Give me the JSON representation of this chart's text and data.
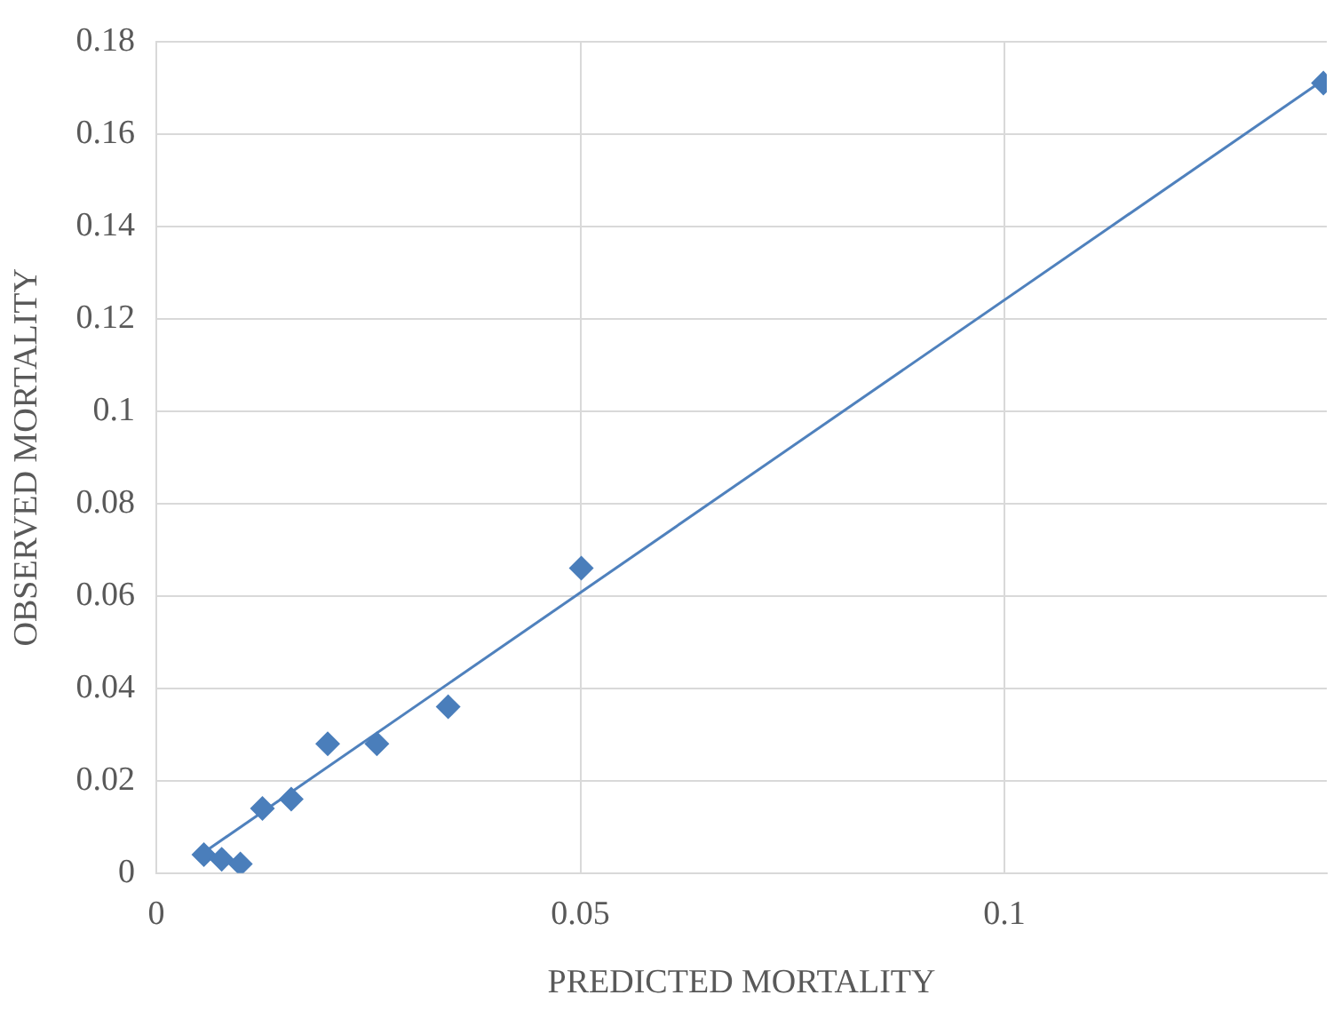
{
  "chart_data": {
    "type": "scatter",
    "xlabel": "PREDICTED MORTALITY",
    "ylabel": "OBSERVED MORTALITY",
    "xlim": [
      0,
      0.138
    ],
    "xticks": [
      0,
      0.05,
      0.1
    ],
    "ylim": [
      0,
      0.18
    ],
    "yticks": [
      0,
      0.02,
      0.04,
      0.06,
      0.08,
      0.1,
      0.12,
      0.14,
      0.16,
      0.18
    ],
    "grid": true,
    "legend": false,
    "marker": "diamond",
    "series": [
      {
        "type": "scatter",
        "color": "#4a7ebb",
        "x": [
          0.0056,
          0.0077,
          0.0099,
          0.0125,
          0.0159,
          0.0202,
          0.026,
          0.0344,
          0.0501,
          0.1376
        ],
        "values": [
          0.004,
          0.003,
          0.002,
          0.014,
          0.016,
          0.028,
          0.028,
          0.036,
          0.066,
          0.171
        ]
      },
      {
        "type": "line",
        "color": "#4f81bd",
        "marker": "none",
        "line_style": "solid",
        "x": [
          0.0056,
          0.1376
        ],
        "values": [
          0.0045,
          0.1717
        ]
      }
    ]
  }
}
